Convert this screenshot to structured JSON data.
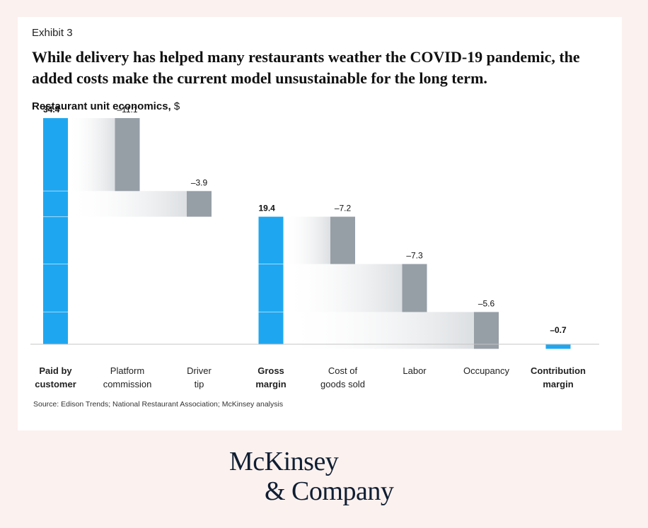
{
  "exhibit": "Exhibit 3",
  "headline": "While delivery has helped many restaurants weather the COVID-19 pandemic, the added costs make the current model unsustainable for the long term.",
  "subtitle_main": "Restaurant unit economics,",
  "subtitle_unit": "$",
  "source": "Source: Edison Trends; National Restaurant Association; McKinsey analysis",
  "logo": {
    "line1": "McKinsey",
    "line2": "& Company"
  },
  "colors": {
    "total": "#1ea7f0",
    "decrease": "#969ea6",
    "baseline": "#c4c4c4",
    "background": "#fbf1ee"
  },
  "chart_data": {
    "type": "waterfall",
    "categories": [
      {
        "label": [
          "Paid by",
          "customer"
        ],
        "value": 34.4,
        "kind": "total",
        "value_label": "34.4",
        "bold": true
      },
      {
        "label": [
          "Platform",
          "commission"
        ],
        "value": -11.1,
        "kind": "delta",
        "value_label": "–11.1",
        "bold": false
      },
      {
        "label": [
          "Driver",
          "tip"
        ],
        "value": -3.9,
        "kind": "delta",
        "value_label": "–3.9",
        "bold": false
      },
      {
        "label": [
          "Gross",
          "margin"
        ],
        "value": 19.4,
        "kind": "total",
        "value_label": "19.4",
        "bold": true
      },
      {
        "label": [
          "Cost of",
          "goods sold"
        ],
        "value": -7.2,
        "kind": "delta",
        "value_label": "–7.2",
        "bold": false
      },
      {
        "label": [
          "Labor"
        ],
        "value": -7.3,
        "kind": "delta",
        "value_label": "–7.3",
        "bold": false
      },
      {
        "label": [
          "Occupancy"
        ],
        "value": -5.6,
        "kind": "delta",
        "value_label": "–5.6",
        "bold": false
      },
      {
        "label": [
          "Contribution",
          "margin"
        ],
        "value": -0.7,
        "kind": "total",
        "value_label": "–0.7",
        "bold": true
      }
    ]
  }
}
